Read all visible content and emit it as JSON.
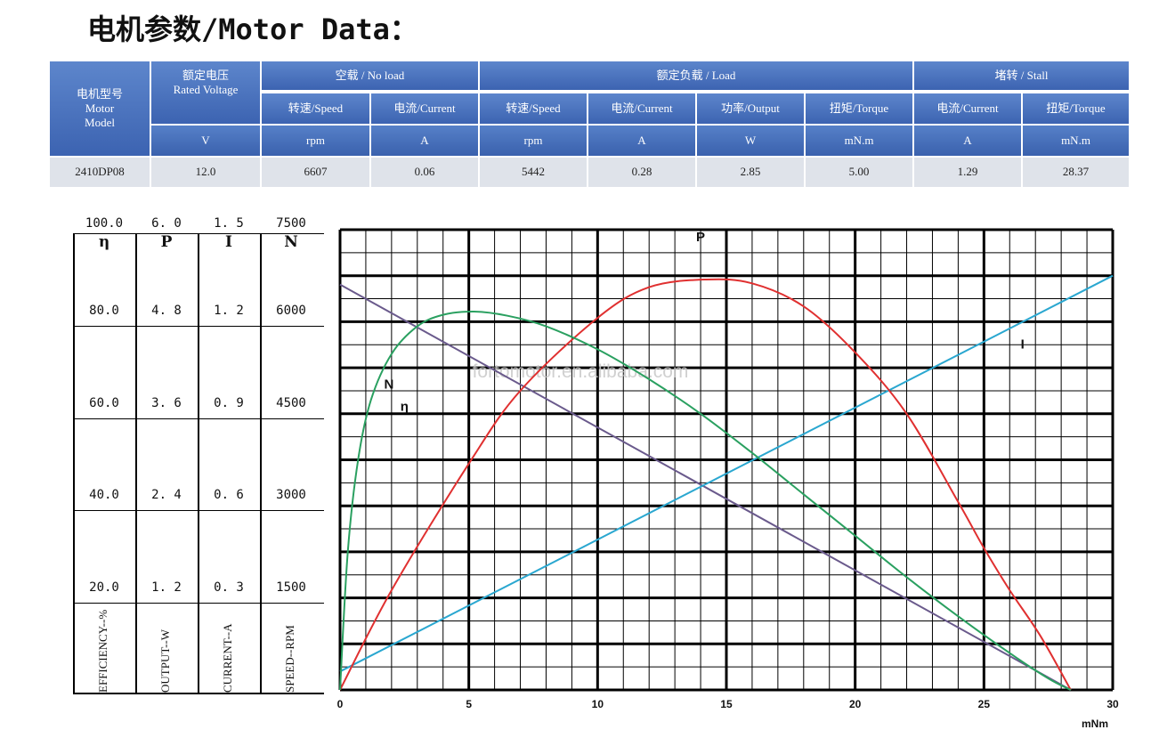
{
  "title": "电机参数/Motor Data：",
  "table": {
    "model_header": "电机型号\nMotor\nModel",
    "voltage_header": "额定电压\nRated Voltage",
    "voltage_unit": "V",
    "groups": [
      {
        "label": "空载 / No load"
      },
      {
        "label": "额定负载 / Load"
      },
      {
        "label": "堵转 / Stall"
      }
    ],
    "columns": [
      {
        "label": "转速/Speed",
        "unit": "rpm"
      },
      {
        "label": "电流/Current",
        "unit": "A"
      },
      {
        "label": "转速/Speed",
        "unit": "rpm"
      },
      {
        "label": "电流/Current",
        "unit": "A"
      },
      {
        "label": "功率/Output",
        "unit": "W"
      },
      {
        "label": "扭矩/Torque",
        "unit": "mN.m"
      },
      {
        "label": "电流/Current",
        "unit": "A"
      },
      {
        "label": "扭矩/Torque",
        "unit": "mN.m"
      }
    ],
    "row": [
      "2410DP08",
      "12.0",
      "6607",
      "0.06",
      "5442",
      "0.28",
      "2.85",
      "5.00",
      "1.29",
      "28.37"
    ]
  },
  "scale": {
    "symbols": [
      "η",
      "P",
      "I",
      "N"
    ],
    "ticks": [
      [
        "100.0",
        "6. 0",
        "1. 5",
        "7500"
      ],
      [
        "80.0",
        "4. 8",
        "1. 2",
        "6000"
      ],
      [
        "60.0",
        "3. 6",
        "0. 9",
        "4500"
      ],
      [
        "40.0",
        "2. 4",
        "0. 6",
        "3000"
      ],
      [
        "20.0",
        "1. 2",
        "0. 3",
        "1500"
      ]
    ],
    "axis_labels": [
      "EFFICIENCY--%",
      "OUTPUT--W",
      "CURRENT--A",
      "SPEED--RPM"
    ]
  },
  "chart_data": {
    "type": "line",
    "xlabel": "mNm",
    "xlim": [
      0,
      30
    ],
    "x_ticks": [
      "0",
      "5",
      "10",
      "15",
      "20",
      "25",
      "30"
    ],
    "watermark": "fortomotor.en.alibaba.com",
    "series": [
      {
        "name": "N",
        "unit": "rpm",
        "color": "#6a5a8c",
        "ymax": 7500,
        "points": [
          [
            0,
            6607
          ],
          [
            28.37,
            0
          ]
        ]
      },
      {
        "name": "I",
        "unit": "A",
        "color": "#2aa7d0",
        "ymax": 1.5,
        "points": [
          [
            0,
            0.06
          ],
          [
            30,
            1.35
          ]
        ]
      },
      {
        "name": "P",
        "unit": "W",
        "color": "#e03030",
        "ymax": 6.0,
        "points": [
          [
            0,
            0
          ],
          [
            2,
            1.3
          ],
          [
            5,
            2.95
          ],
          [
            7,
            3.9
          ],
          [
            10,
            4.85
          ],
          [
            12,
            5.25
          ],
          [
            14.2,
            5.35
          ],
          [
            16,
            5.3
          ],
          [
            18,
            5.0
          ],
          [
            20,
            4.4
          ],
          [
            22,
            3.6
          ],
          [
            24,
            2.45
          ],
          [
            25,
            1.85
          ],
          [
            26,
            1.3
          ],
          [
            27.2,
            0.7
          ],
          [
            28.37,
            0
          ]
        ]
      },
      {
        "name": "η",
        "unit": "%",
        "color": "#2aa060",
        "ymax": 100.0,
        "points": [
          [
            0,
            0
          ],
          [
            0.3,
            30
          ],
          [
            0.7,
            50
          ],
          [
            1.2,
            63
          ],
          [
            2,
            73
          ],
          [
            3,
            79
          ],
          [
            4,
            81.5
          ],
          [
            5.2,
            82.2
          ],
          [
            6.5,
            81.3
          ],
          [
            8,
            79
          ],
          [
            10,
            74
          ],
          [
            12,
            67.5
          ],
          [
            14,
            60
          ],
          [
            16,
            51.5
          ],
          [
            18,
            42.5
          ],
          [
            20,
            33.5
          ],
          [
            22,
            24.5
          ],
          [
            24,
            16
          ],
          [
            26,
            8
          ],
          [
            27.5,
            2.5
          ],
          [
            28.37,
            0
          ]
        ]
      }
    ],
    "curve_labels": [
      {
        "text": "P",
        "series": "P"
      },
      {
        "text": "I",
        "series": "I"
      },
      {
        "text": "N",
        "series": "N"
      },
      {
        "text": "η",
        "series": "η"
      }
    ]
  }
}
